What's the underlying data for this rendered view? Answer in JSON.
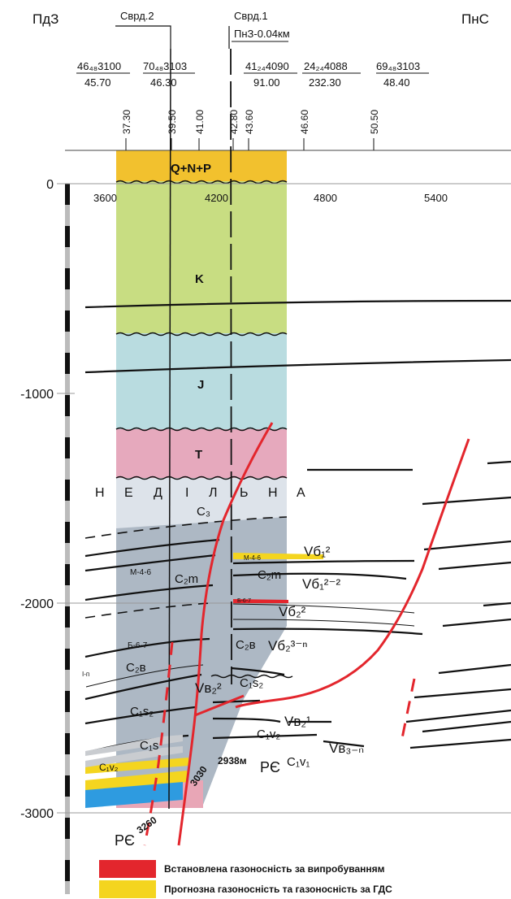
{
  "directions": {
    "left": "ПдЗ",
    "right": "ПнС"
  },
  "wells": [
    {
      "name": "Сврд.2"
    },
    {
      "name": "Сврд.1",
      "offset_note": "ПнЗ-0.04км"
    }
  ],
  "profiles": [
    {
      "top": "46₄₈3100",
      "bottom": "45.70"
    },
    {
      "top": "70₄₈3103",
      "bottom": "46.30"
    },
    {
      "top": "41₂₄4090",
      "bottom": "91.00"
    },
    {
      "top": "24₂₄4088",
      "bottom": "232.30"
    },
    {
      "top": "69₄₈3103",
      "bottom": "48.40"
    }
  ],
  "pickets": [
    "37.30",
    "39.50",
    "41.00",
    "42.80",
    "43.60",
    "46.60",
    "50.50"
  ],
  "x_ticks": [
    "3600",
    "4200",
    "4800",
    "5400"
  ],
  "depth_ticks": [
    "0",
    "-1000",
    "-2000",
    "-3000"
  ],
  "strata": {
    "qnp": "Q+N+P",
    "k": "K",
    "j": "J",
    "t": "T",
    "nedilna": [
      "Н",
      "Е",
      "Д",
      "І",
      "Л",
      "Ь",
      "Н",
      "А"
    ],
    "c3": "C₃",
    "c2m": "C₂m",
    "c2m_right": "C₂m",
    "m46": "М-4-6",
    "m46_right": "М-4-6",
    "b67": "Б-6-7",
    "b67_right": "Б-6-7",
    "c2v": "C₂в",
    "c2v_right": "C₂в",
    "c1s2": "C₁s₂",
    "c1s2_right": "C₁s₂",
    "c1s": "C₁s",
    "c1v2": "C₁v₂",
    "c1v2_right": "C₁v₂",
    "c1v1": "C₁v₁",
    "pc": "PЄ",
    "pc_right": "PЄ",
    "ln": "І-п"
  },
  "horizons": {
    "vb1_2": "Vб₁²",
    "vb1_22": "Vб₁²⁻²",
    "vb2_2": "Vб₂²",
    "vb2_3p": "Vб₂³⁻ⁿ",
    "vv2_2": "Vв₂²",
    "vv2_1": "Vв₂¹",
    "vv3p": "Vв₃₋ₙ"
  },
  "depth_labels": {
    "d3030": "3030",
    "d2938": "2938м",
    "d3260": "3260"
  },
  "legend": [
    {
      "color": "#e3262d",
      "label": "Встановлена газоносність за випробуванням"
    },
    {
      "color": "#f4d51f",
      "label": "Прогнозна газоносність та газоносність за ГДС"
    }
  ],
  "colors": {
    "qnp": "#f2c12e",
    "k": "#c8dd82",
    "j": "#b9dce0",
    "t": "#e6a9bd",
    "c3": "#dde3ea",
    "carb": "#adb8c4",
    "fault": "#e3262d",
    "gas": "#f4d51f",
    "blue": "#2e9be0"
  }
}
